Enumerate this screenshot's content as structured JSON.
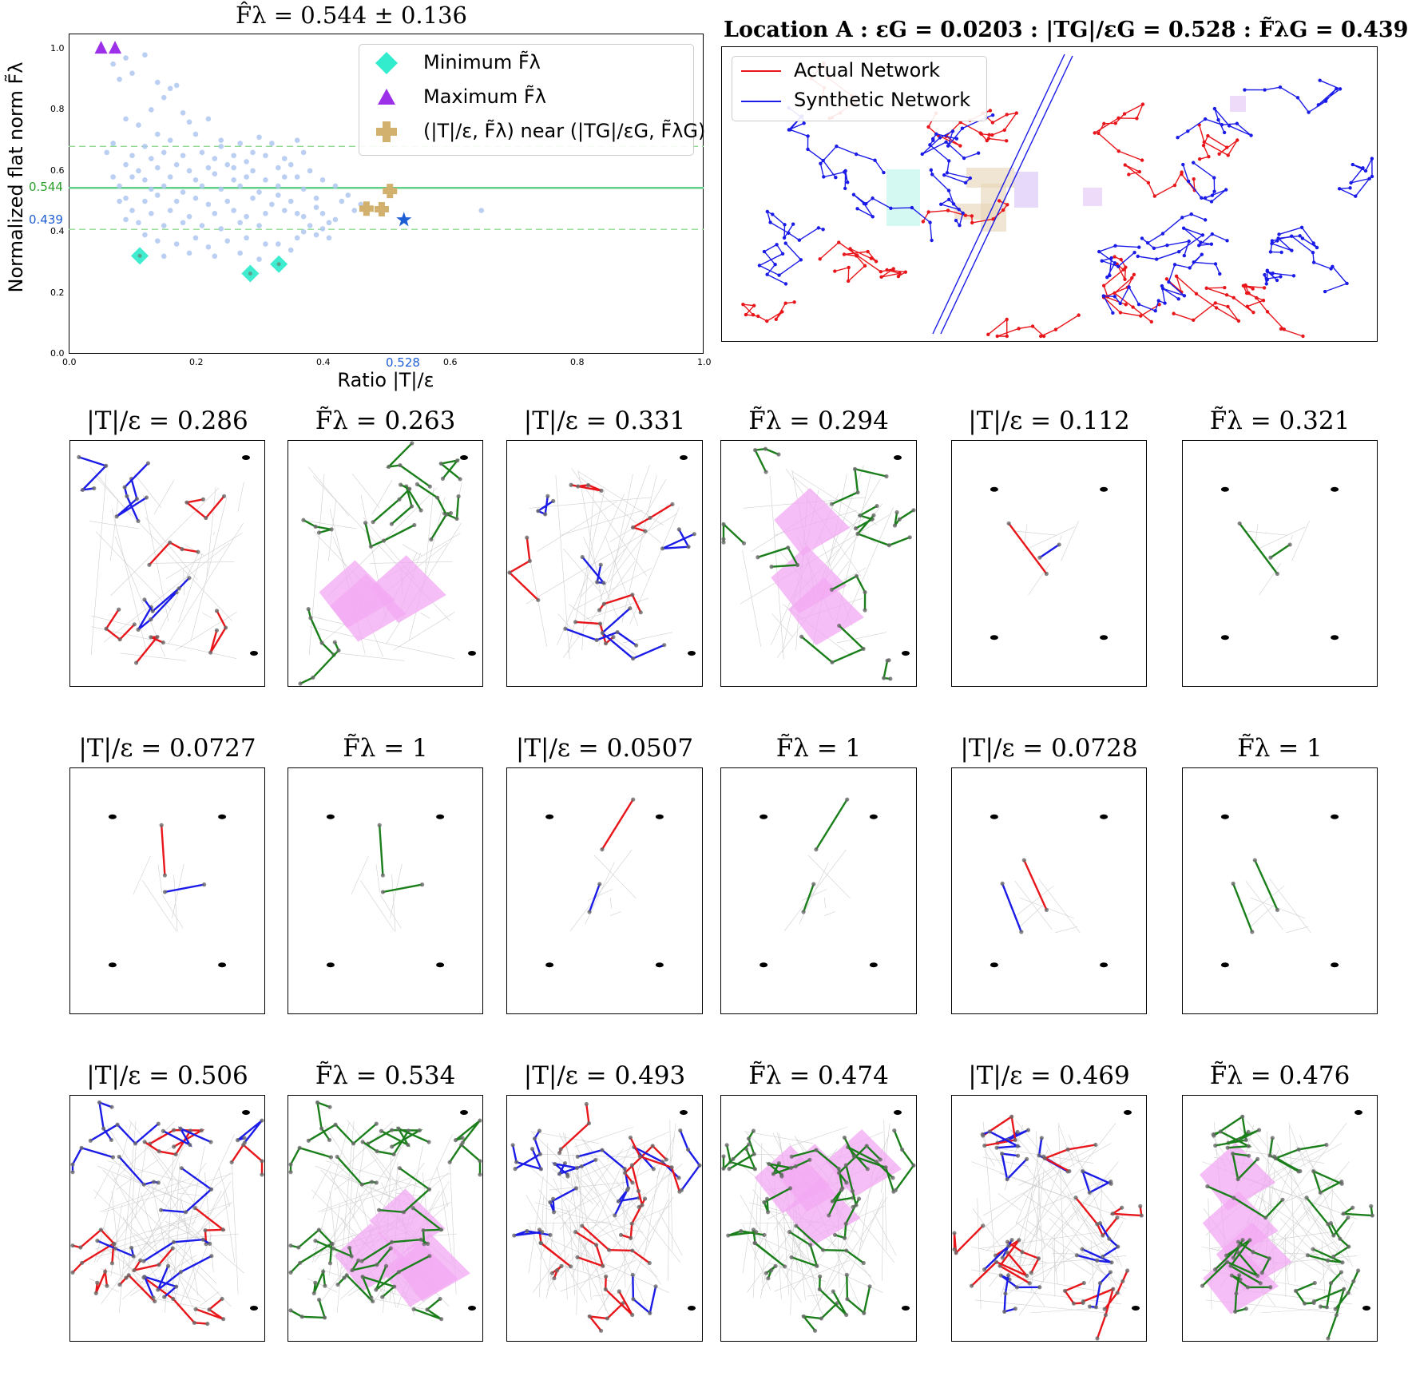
{
  "chart_data": [
    {
      "type": "scatter",
      "title": "F̂λ = 0.544 ± 0.136",
      "xlabel": "Ratio |T|/ε",
      "ylabel": "Normalized flat norm F̃λ",
      "xlim": [
        0.0,
        1.0
      ],
      "ylim": [
        0.0,
        1.05
      ],
      "x_ticks": [
        "0.0",
        "0.2",
        "0.4",
        "0.6",
        "0.8",
        "1.0"
      ],
      "y_ticks": [
        "0.0",
        "0.2",
        "0.4",
        "0.6",
        "0.8",
        "1.0"
      ],
      "mean_line": {
        "value": 0.544,
        "label": "0.544",
        "color": "#2ca02c"
      },
      "band_lines": [
        0.408,
        0.68
      ],
      "highlight": {
        "x": 0.528,
        "y": 0.439,
        "x_label": "0.528",
        "y_label": "0.439",
        "color": "#1f5fd6"
      },
      "legend": [
        {
          "label": "Minimum F̃λ",
          "marker": "diamond",
          "color": "#1de9c8"
        },
        {
          "label": "Maximum F̃λ",
          "marker": "triangle",
          "color": "#9b30e8"
        },
        {
          "label": "(|T|/ε, F̃λ) near (|TG|/εG, F̃λG)",
          "marker": "plus",
          "color": "#d2b06e"
        }
      ],
      "minimum_points": [
        [
          0.112,
          0.321
        ],
        [
          0.286,
          0.263
        ],
        [
          0.331,
          0.294
        ]
      ],
      "maximum_points": [
        [
          0.051,
          1.0
        ],
        [
          0.073,
          1.0
        ]
      ],
      "near_points": [
        [
          0.506,
          0.534
        ],
        [
          0.493,
          0.474
        ],
        [
          0.469,
          0.476
        ]
      ],
      "scatter_points": [
        [
          0.07,
          0.95
        ],
        [
          0.09,
          0.97
        ],
        [
          0.12,
          0.98
        ],
        [
          0.1,
          0.92
        ],
        [
          0.08,
          0.9
        ],
        [
          0.14,
          0.89
        ],
        [
          0.16,
          0.87
        ],
        [
          0.17,
          0.88
        ],
        [
          0.15,
          0.84
        ],
        [
          0.13,
          0.8
        ],
        [
          0.18,
          0.79
        ],
        [
          0.09,
          0.77
        ],
        [
          0.11,
          0.75
        ],
        [
          0.19,
          0.76
        ],
        [
          0.22,
          0.77
        ],
        [
          0.14,
          0.72
        ],
        [
          0.07,
          0.69
        ],
        [
          0.12,
          0.68
        ],
        [
          0.16,
          0.7
        ],
        [
          0.2,
          0.72
        ],
        [
          0.24,
          0.7
        ],
        [
          0.27,
          0.69
        ],
        [
          0.3,
          0.71
        ],
        [
          0.32,
          0.69
        ],
        [
          0.36,
          0.7
        ],
        [
          0.1,
          0.65
        ],
        [
          0.13,
          0.64
        ],
        [
          0.15,
          0.66
        ],
        [
          0.18,
          0.65
        ],
        [
          0.21,
          0.66
        ],
        [
          0.23,
          0.64
        ],
        [
          0.26,
          0.65
        ],
        [
          0.28,
          0.63
        ],
        [
          0.31,
          0.65
        ],
        [
          0.34,
          0.64
        ],
        [
          0.37,
          0.66
        ],
        [
          0.09,
          0.62
        ],
        [
          0.11,
          0.6
        ],
        [
          0.14,
          0.61
        ],
        [
          0.17,
          0.62
        ],
        [
          0.19,
          0.6
        ],
        [
          0.22,
          0.61
        ],
        [
          0.25,
          0.62
        ],
        [
          0.29,
          0.6
        ],
        [
          0.33,
          0.61
        ],
        [
          0.35,
          0.62
        ],
        [
          0.38,
          0.6
        ],
        [
          0.1,
          0.58
        ],
        [
          0.12,
          0.57
        ],
        [
          0.16,
          0.58
        ],
        [
          0.2,
          0.57
        ],
        [
          0.23,
          0.59
        ],
        [
          0.26,
          0.57
        ],
        [
          0.28,
          0.58
        ],
        [
          0.31,
          0.57
        ],
        [
          0.36,
          0.58
        ],
        [
          0.4,
          0.57
        ],
        [
          0.08,
          0.55
        ],
        [
          0.13,
          0.54
        ],
        [
          0.15,
          0.55
        ],
        [
          0.18,
          0.53
        ],
        [
          0.21,
          0.55
        ],
        [
          0.24,
          0.54
        ],
        [
          0.27,
          0.55
        ],
        [
          0.3,
          0.53
        ],
        [
          0.33,
          0.55
        ],
        [
          0.37,
          0.54
        ],
        [
          0.42,
          0.55
        ],
        [
          0.09,
          0.51
        ],
        [
          0.12,
          0.5
        ],
        [
          0.14,
          0.52
        ],
        [
          0.17,
          0.5
        ],
        [
          0.2,
          0.51
        ],
        [
          0.22,
          0.49
        ],
        [
          0.25,
          0.5
        ],
        [
          0.29,
          0.51
        ],
        [
          0.32,
          0.49
        ],
        [
          0.35,
          0.5
        ],
        [
          0.39,
          0.51
        ],
        [
          0.43,
          0.5
        ],
        [
          0.1,
          0.47
        ],
        [
          0.13,
          0.46
        ],
        [
          0.16,
          0.47
        ],
        [
          0.19,
          0.45
        ],
        [
          0.23,
          0.46
        ],
        [
          0.26,
          0.47
        ],
        [
          0.28,
          0.45
        ],
        [
          0.31,
          0.46
        ],
        [
          0.34,
          0.47
        ],
        [
          0.37,
          0.45
        ],
        [
          0.4,
          0.46
        ],
        [
          0.42,
          0.44
        ],
        [
          0.11,
          0.43
        ],
        [
          0.15,
          0.42
        ],
        [
          0.18,
          0.43
        ],
        [
          0.21,
          0.42
        ],
        [
          0.24,
          0.41
        ],
        [
          0.27,
          0.43
        ],
        [
          0.3,
          0.42
        ],
        [
          0.38,
          0.42
        ],
        [
          0.4,
          0.41
        ],
        [
          0.41,
          0.43
        ],
        [
          0.39,
          0.39
        ],
        [
          0.37,
          0.4
        ],
        [
          0.12,
          0.39
        ],
        [
          0.14,
          0.37
        ],
        [
          0.17,
          0.36
        ],
        [
          0.2,
          0.38
        ],
        [
          0.22,
          0.35
        ],
        [
          0.25,
          0.37
        ],
        [
          0.28,
          0.38
        ],
        [
          0.31,
          0.36
        ],
        [
          0.36,
          0.38
        ],
        [
          0.19,
          0.33
        ],
        [
          0.23,
          0.32
        ],
        [
          0.27,
          0.33
        ],
        [
          0.3,
          0.31
        ],
        [
          0.65,
          0.47
        ],
        [
          0.46,
          0.49
        ],
        [
          0.44,
          0.52
        ],
        [
          0.15,
          0.32
        ],
        [
          0.33,
          0.36
        ],
        [
          0.35,
          0.34
        ],
        [
          0.41,
          0.38
        ],
        [
          0.24,
          0.68
        ],
        [
          0.26,
          0.61
        ],
        [
          0.29,
          0.66
        ],
        [
          0.34,
          0.58
        ],
        [
          0.06,
          0.66
        ],
        [
          0.07,
          0.58
        ],
        [
          0.08,
          0.5
        ],
        [
          0.09,
          0.44
        ],
        [
          0.33,
          0.52
        ],
        [
          0.39,
          0.48
        ],
        [
          0.36,
          0.46
        ],
        [
          0.45,
          0.47
        ]
      ]
    },
    {
      "type": "network_map",
      "title": "Location A : εG = 0.0203 : |TG|/εG = 0.528 : F̃λG = 0.439",
      "legend": [
        {
          "label": "Actual Network",
          "color": "#e8161b"
        },
        {
          "label": "Synthetic Network",
          "color": "#1b1be8"
        }
      ]
    },
    {
      "type": "network_panels",
      "panel_titles": [
        "|T|/ε = 0.286",
        "F̃λ = 0.263",
        "|T|/ε = 0.331",
        "F̃λ = 0.294",
        "|T|/ε = 0.112",
        "F̃λ = 0.321",
        "|T|/ε = 0.0727",
        "F̃λ = 1",
        "|T|/ε = 0.0507",
        "F̃λ = 1",
        "|T|/ε = 0.0728",
        "F̃λ = 1",
        "|T|/ε = 0.506",
        "F̃λ = 0.534",
        "|T|/ε = 0.493",
        "F̃λ = 0.474",
        "|T|/ε = 0.469",
        "F̃λ = 0.476"
      ]
    }
  ],
  "colors": {
    "actual": "#e8161b",
    "synthetic": "#1b1be8",
    "flat": "#1a7f1a",
    "patch": "#f3a8f3",
    "scatter": "#aec7f0",
    "mean": "#2ca02c",
    "highlight": "#1f5fd6"
  }
}
